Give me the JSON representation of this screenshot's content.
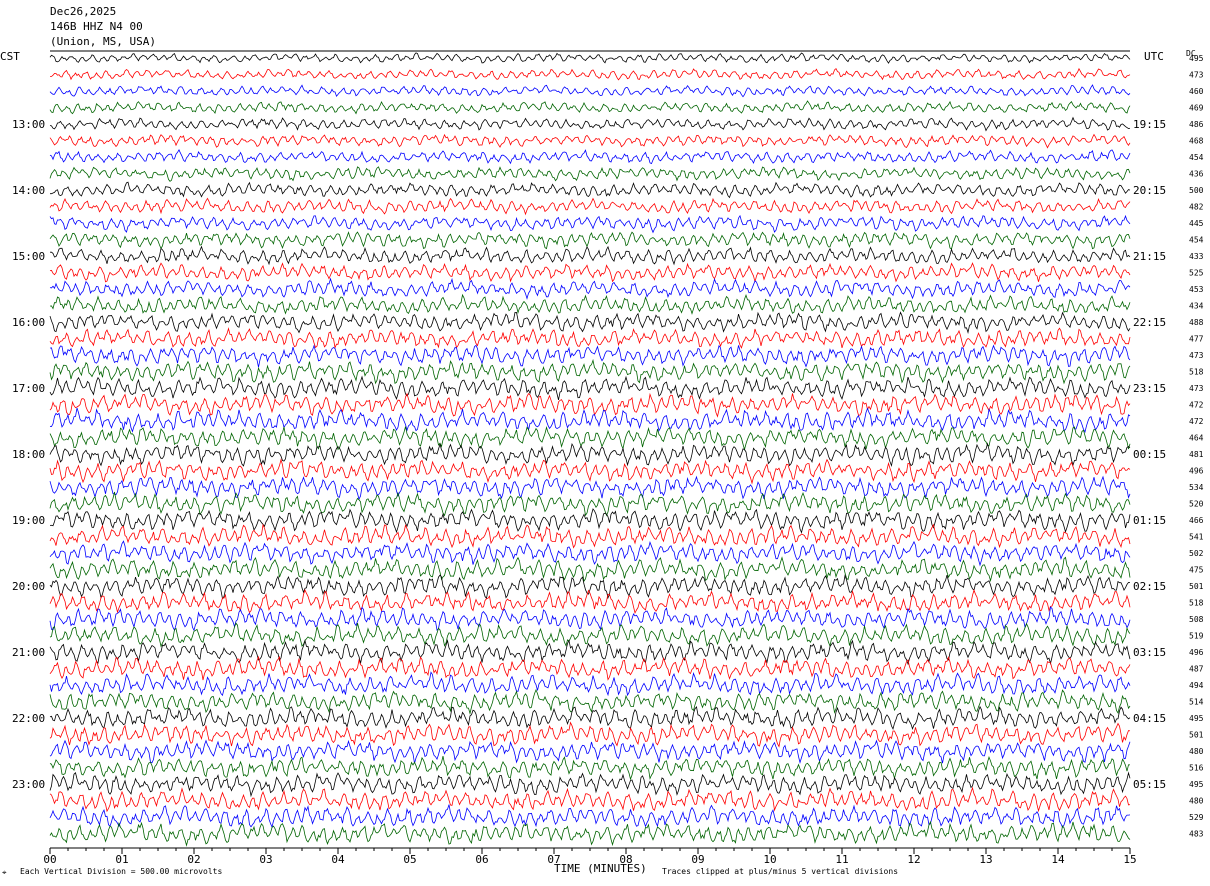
{
  "header": {
    "date": "Dec26,2025",
    "station": "146B HHZ N4 00",
    "location": "(Union, MS, USA)"
  },
  "labels": {
    "left_tz": "CST",
    "right_tz": "UTC",
    "dc_header": "DC"
  },
  "footer": {
    "scale_note": "Each Vertical Division =  500.00 microvolts",
    "x_axis_label": "TIME (MINUTES)",
    "clip_note": "Traces clipped at plus/minus 5 vertical divisions"
  },
  "colors": {
    "black": "#000000",
    "red": "#ff0000",
    "blue": "#0000ff",
    "green": "#006400"
  },
  "chart_data": {
    "type": "line",
    "title": "146B HHZ N4 00",
    "xlabel": "TIME (MINUTES)",
    "xlim": [
      0,
      15
    ],
    "x_ticks": [
      "00",
      "01",
      "02",
      "03",
      "04",
      "05",
      "06",
      "07",
      "08",
      "09",
      "10",
      "11",
      "12",
      "13",
      "14",
      "15"
    ],
    "left_time_labels": [
      "13:00",
      "14:00",
      "15:00",
      "16:00",
      "17:00",
      "18:00",
      "19:00",
      "20:00",
      "21:00",
      "22:00",
      "23:00"
    ],
    "right_time_labels": [
      "19:15",
      "20:15",
      "21:15",
      "22:15",
      "23:15",
      "00:15",
      "01:15",
      "02:15",
      "03:15",
      "04:15",
      "05:15"
    ],
    "trace_colors_cycle": [
      "black",
      "red",
      "blue",
      "green"
    ],
    "dc_values": [
      495,
      473,
      460,
      469,
      486,
      468,
      454,
      436,
      500,
      482,
      445,
      454,
      433,
      525,
      453,
      434,
      488,
      477,
      473,
      518,
      473,
      472,
      472,
      464,
      481,
      496,
      534,
      520,
      466,
      541,
      502,
      475,
      501,
      518,
      508,
      519,
      496,
      487,
      494,
      514,
      495,
      501,
      480,
      516,
      495,
      480,
      529,
      483
    ],
    "vertical_division_microvolts": 500.0
  }
}
